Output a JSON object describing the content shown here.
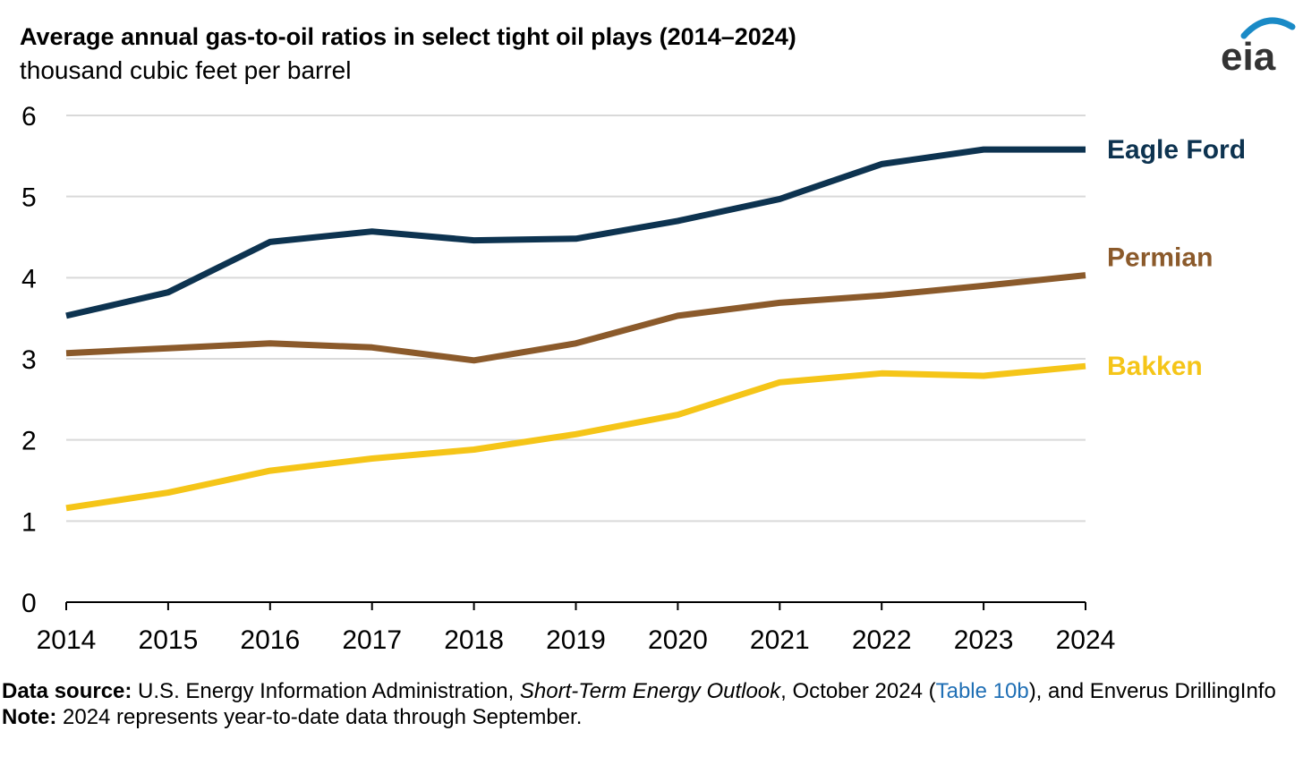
{
  "header": {
    "title": "Average annual gas-to-oil ratios in select tight oil plays (2014–2024)",
    "subtitle": "thousand cubic feet per barrel",
    "logo_text": "eia"
  },
  "chart_data": {
    "type": "line",
    "title": "Average annual gas-to-oil ratios in select tight oil plays (2014–2024)",
    "ylabel": "thousand cubic feet per barrel",
    "xlabel": "",
    "x": [
      2014,
      2015,
      2016,
      2017,
      2018,
      2019,
      2020,
      2021,
      2022,
      2023,
      2024
    ],
    "x_tick_labels": [
      "2014",
      "2015",
      "2016",
      "2017",
      "2018",
      "2019",
      "2020",
      "2021",
      "2022",
      "2023",
      "2024"
    ],
    "y_ticks": [
      0,
      1,
      2,
      3,
      4,
      5,
      6
    ],
    "ylim": [
      0,
      6
    ],
    "grid": "horizontal",
    "legend": "labels at right end of lines",
    "series": [
      {
        "name": "Eagle Ford",
        "color": "#0d3350",
        "values": [
          3.53,
          3.82,
          4.44,
          4.57,
          4.46,
          4.48,
          4.7,
          4.97,
          5.4,
          5.58,
          5.58
        ]
      },
      {
        "name": "Permian",
        "color": "#8b5a2b",
        "values": [
          3.07,
          3.13,
          3.19,
          3.14,
          2.98,
          3.19,
          3.53,
          3.69,
          3.78,
          3.9,
          4.03
        ]
      },
      {
        "name": "Bakken",
        "color": "#f5c518",
        "values": [
          1.16,
          1.35,
          1.62,
          1.77,
          1.88,
          2.07,
          2.31,
          2.71,
          2.82,
          2.79,
          2.91
        ]
      }
    ]
  },
  "footer": {
    "source_label": "Data source:",
    "source_pre": " U.S. Energy Information Administration, ",
    "source_italic": "Short-Term Energy Outlook",
    "source_mid": ", October 2024 (",
    "source_link": "Table 10b",
    "source_post": "), and Enverus DrillingInfo",
    "note_label": "Note:",
    "note_text": " 2024 represents year-to-date data through September."
  },
  "colors": {
    "gridline": "#d9d9d9",
    "axis": "#000000",
    "link": "#1f6fb5",
    "logo_arc": "#1a8ac6",
    "logo_text": "#333333"
  }
}
